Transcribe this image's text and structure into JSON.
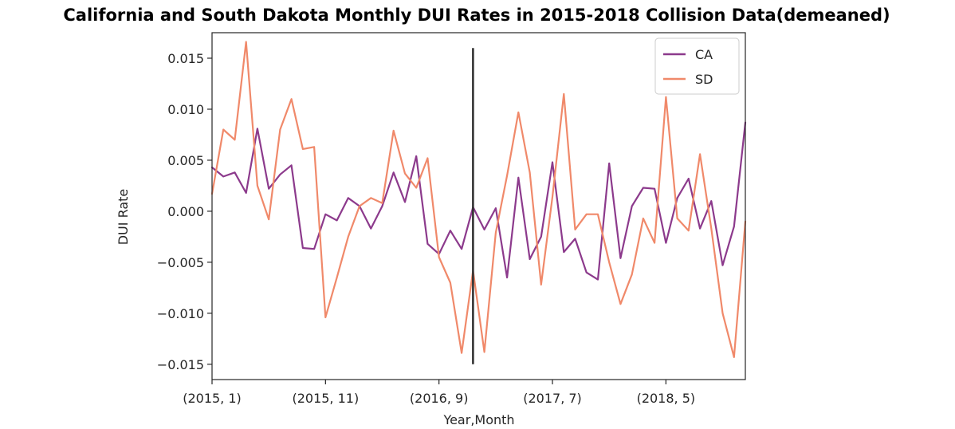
{
  "chart_data": {
    "type": "line",
    "title": "California and South Dakota Monthly DUI Rates in 2015-2018 Collision Data(demeaned)",
    "xlabel": "Year,Month",
    "ylabel": "DUI Rate",
    "ylim": [
      -0.0165,
      0.0175
    ],
    "yticks": [
      -0.015,
      -0.01,
      -0.005,
      0.0,
      0.005,
      0.01,
      0.015
    ],
    "ytick_labels": [
      "−0.015",
      "−0.010",
      "−0.005",
      "0.000",
      "0.005",
      "0.010",
      "0.015"
    ],
    "xticks": [
      0,
      10,
      20,
      30,
      40
    ],
    "xtick_labels": [
      "(2015, 1)",
      "(2015, 11)",
      "(2016, 9)",
      "(2017, 7)",
      "(2018, 5)"
    ],
    "xlim": [
      0,
      47
    ],
    "vline": {
      "x": 23,
      "ymin": -0.015,
      "ymax": 0.016,
      "color": "#333333"
    },
    "legend": {
      "position": "top-right"
    },
    "grid": false,
    "series": [
      {
        "name": "CA",
        "color": "#8c3a8c",
        "values": [
          0.0043,
          0.0034,
          0.0038,
          0.0018,
          0.0081,
          0.0022,
          0.0036,
          0.0045,
          -0.0036,
          -0.0037,
          -0.0003,
          -0.0009,
          0.0013,
          0.0005,
          -0.0017,
          0.0005,
          0.0038,
          0.0009,
          0.0054,
          -0.0032,
          -0.0042,
          -0.0019,
          -0.0037,
          0.0004,
          -0.0018,
          0.0003,
          -0.0065,
          0.0033,
          -0.0047,
          -0.0025,
          0.0048,
          -0.004,
          -0.0027,
          -0.006,
          -0.0067,
          0.0047,
          -0.0046,
          0.0005,
          0.0023,
          0.0022,
          -0.0031,
          0.0013,
          0.0032,
          -0.0017,
          0.001,
          -0.0053,
          -0.0015,
          0.0087
        ]
      },
      {
        "name": "SD",
        "color": "#f0896a",
        "values": [
          0.0017,
          0.008,
          0.007,
          0.0166,
          0.0025,
          -0.0008,
          0.008,
          0.011,
          0.0061,
          0.0063,
          -0.0104,
          -0.0065,
          -0.0025,
          0.0005,
          0.0013,
          0.0008,
          0.0079,
          0.0037,
          0.0023,
          0.0052,
          -0.0045,
          -0.007,
          -0.0139,
          -0.0058,
          -0.0138,
          -0.0021,
          0.0035,
          0.0097,
          0.0038,
          -0.0072,
          0.0014,
          0.0115,
          -0.0018,
          -0.0003,
          -0.0003,
          -0.005,
          -0.0091,
          -0.0062,
          -0.0007,
          -0.0031,
          0.0112,
          -0.0007,
          -0.0019,
          0.0056,
          -0.0017,
          -0.01,
          -0.0143,
          -0.001
        ]
      }
    ]
  }
}
